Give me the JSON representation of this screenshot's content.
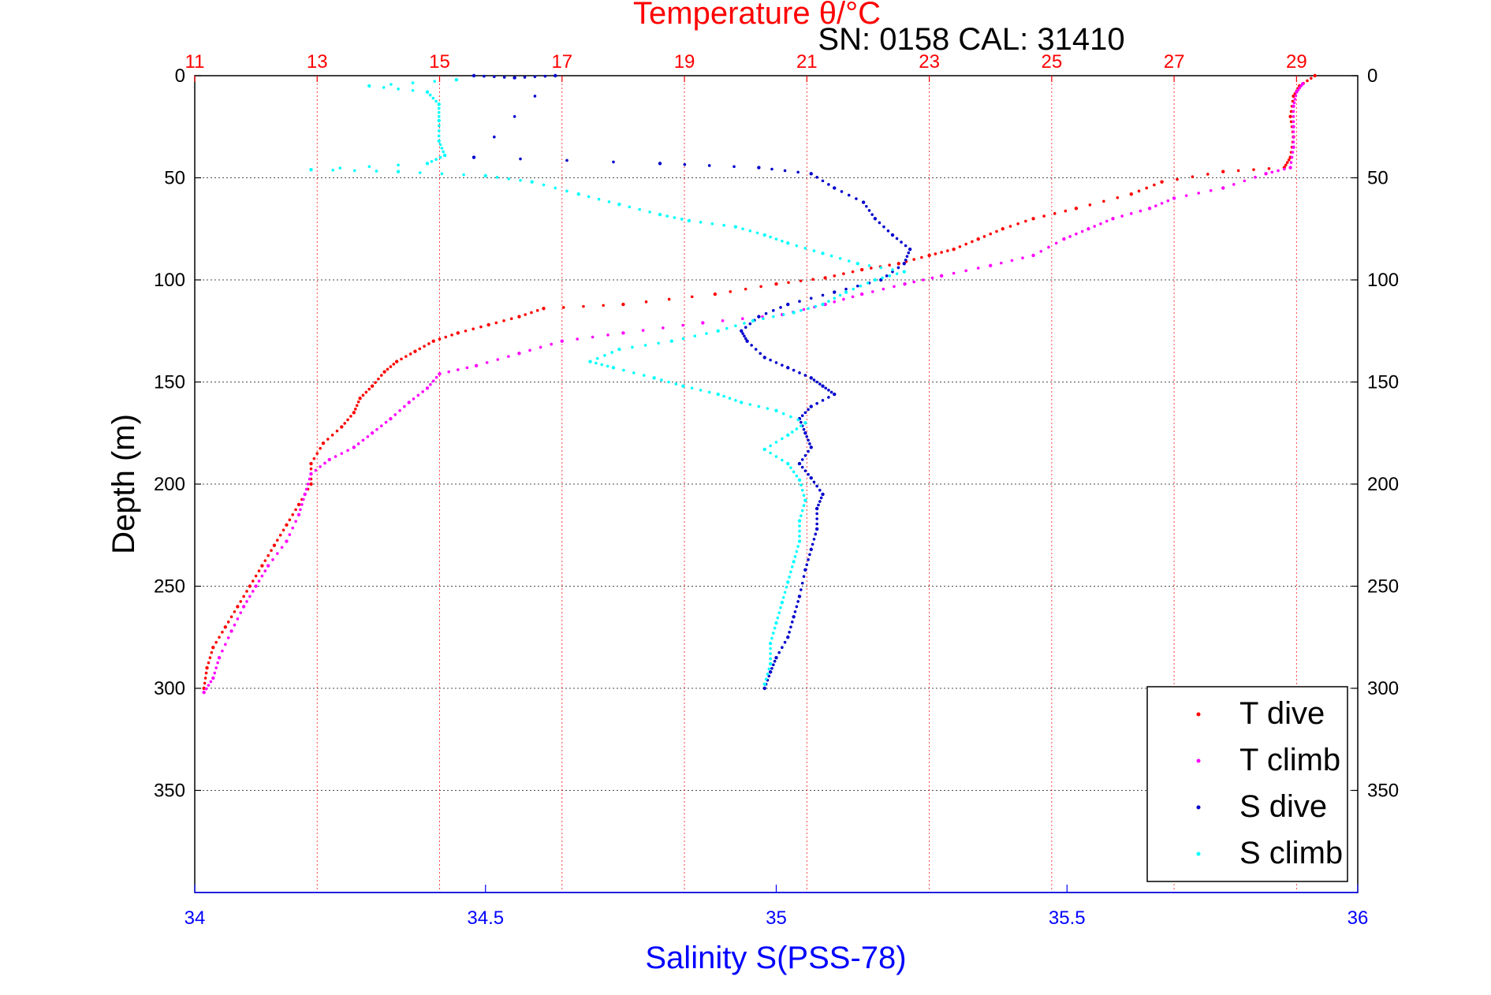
{
  "chart_data": {
    "type": "scatter",
    "title": "Temperature θ/°C",
    "subtitle": "SN: 0158  CAL: 31410",
    "ylabel": "Depth (m)",
    "xlabel_bottom": "Salinity S(PSS-78)",
    "xlabel_top": "Temperature θ/°C",
    "ylim": [
      0,
      400
    ],
    "y_reversed": true,
    "yticks": [
      0,
      50,
      100,
      150,
      200,
      250,
      300,
      350
    ],
    "x_top_lim": [
      11,
      30
    ],
    "x_top_ticks": [
      11,
      13,
      15,
      17,
      19,
      21,
      23,
      25,
      27,
      29
    ],
    "x_bottom_lim": [
      34,
      36
    ],
    "x_bottom_ticks": [
      34,
      34.5,
      35,
      35.5,
      36
    ],
    "grid": true,
    "legend_position": "bottom-right",
    "legend": [
      "T dive",
      "T climb",
      "S dive",
      "S climb"
    ],
    "colors": {
      "T dive": "#ff0000",
      "T climb": "#ff00ff",
      "S dive": "#0000cc",
      "S climb": "#00ffff",
      "grid_temperature": "#ff0000",
      "grid_depth": "#000000"
    },
    "series": [
      {
        "name": "T dive",
        "axis": "temperature",
        "points": [
          [
            29.3,
            0
          ],
          [
            29.05,
            5
          ],
          [
            28.95,
            10
          ],
          [
            28.9,
            20
          ],
          [
            28.95,
            30
          ],
          [
            28.9,
            40
          ],
          [
            28.8,
            45
          ],
          [
            27.8,
            47
          ],
          [
            26.8,
            52
          ],
          [
            26.3,
            58
          ],
          [
            25.4,
            65
          ],
          [
            24.7,
            70
          ],
          [
            24.2,
            75
          ],
          [
            23.8,
            80
          ],
          [
            23.4,
            85
          ],
          [
            23.0,
            88
          ],
          [
            22.5,
            92
          ],
          [
            21.9,
            95
          ],
          [
            21.3,
            99
          ],
          [
            20.5,
            102
          ],
          [
            19.5,
            107
          ],
          [
            18.0,
            112
          ],
          [
            16.7,
            114
          ],
          [
            16.3,
            118
          ],
          [
            15.8,
            122
          ],
          [
            15.3,
            126
          ],
          [
            14.9,
            130
          ],
          [
            14.6,
            135
          ],
          [
            14.3,
            140
          ],
          [
            14.1,
            145
          ],
          [
            13.9,
            152
          ],
          [
            13.7,
            158
          ],
          [
            13.6,
            165
          ],
          [
            13.4,
            172
          ],
          [
            13.1,
            180
          ],
          [
            12.9,
            190
          ],
          [
            12.9,
            200
          ],
          [
            12.7,
            210
          ],
          [
            12.5,
            220
          ],
          [
            12.3,
            230
          ],
          [
            12.1,
            240
          ],
          [
            11.9,
            250
          ],
          [
            11.7,
            260
          ],
          [
            11.5,
            270
          ],
          [
            11.3,
            280
          ],
          [
            11.2,
            290
          ],
          [
            11.15,
            300
          ]
        ]
      },
      {
        "name": "T climb",
        "axis": "temperature",
        "points": [
          [
            11.15,
            302
          ],
          [
            11.3,
            295
          ],
          [
            11.4,
            285
          ],
          [
            11.6,
            272
          ],
          [
            11.8,
            260
          ],
          [
            12.0,
            250
          ],
          [
            12.2,
            240
          ],
          [
            12.5,
            228
          ],
          [
            12.7,
            215
          ],
          [
            12.8,
            205
          ],
          [
            12.9,
            195
          ],
          [
            13.2,
            188
          ],
          [
            13.6,
            182
          ],
          [
            13.9,
            175
          ],
          [
            14.2,
            168
          ],
          [
            14.5,
            160
          ],
          [
            14.8,
            153
          ],
          [
            15.0,
            146
          ],
          [
            15.6,
            142
          ],
          [
            16.3,
            136
          ],
          [
            17.0,
            130
          ],
          [
            18.0,
            126
          ],
          [
            19.3,
            121
          ],
          [
            20.6,
            117
          ],
          [
            21.3,
            112
          ],
          [
            21.9,
            107
          ],
          [
            22.6,
            102
          ],
          [
            23.2,
            98
          ],
          [
            24.0,
            93
          ],
          [
            24.7,
            88
          ],
          [
            25.2,
            80
          ],
          [
            25.6,
            75
          ],
          [
            26.0,
            70
          ],
          [
            26.6,
            65
          ],
          [
            27.0,
            60
          ],
          [
            27.8,
            55
          ],
          [
            28.5,
            48
          ],
          [
            28.9,
            45
          ],
          [
            28.95,
            35
          ],
          [
            28.95,
            25
          ],
          [
            28.95,
            15
          ],
          [
            29.0,
            8
          ],
          [
            29.1,
            4
          ]
        ]
      },
      {
        "name": "S dive",
        "axis": "salinity",
        "points": [
          [
            34.48,
            0
          ],
          [
            34.55,
            1
          ],
          [
            34.62,
            0
          ],
          [
            34.48,
            40
          ],
          [
            34.8,
            43
          ],
          [
            34.97,
            45
          ],
          [
            35.06,
            48
          ],
          [
            35.1,
            55
          ],
          [
            35.15,
            62
          ],
          [
            35.17,
            70
          ],
          [
            35.2,
            78
          ],
          [
            35.23,
            85
          ],
          [
            35.22,
            92
          ],
          [
            35.18,
            100
          ],
          [
            35.1,
            106
          ],
          [
            35.02,
            112
          ],
          [
            34.97,
            118
          ],
          [
            34.94,
            125
          ],
          [
            34.95,
            130
          ],
          [
            34.98,
            138
          ],
          [
            35.02,
            143
          ],
          [
            35.06,
            148
          ],
          [
            35.08,
            152
          ],
          [
            35.1,
            156
          ],
          [
            35.06,
            162
          ],
          [
            35.04,
            168
          ],
          [
            35.05,
            175
          ],
          [
            35.06,
            182
          ],
          [
            35.04,
            190
          ],
          [
            35.06,
            197
          ],
          [
            35.08,
            205
          ],
          [
            35.07,
            212
          ],
          [
            35.07,
            222
          ],
          [
            35.06,
            232
          ],
          [
            35.05,
            242
          ],
          [
            35.04,
            255
          ],
          [
            35.03,
            265
          ],
          [
            35.02,
            275
          ],
          [
            35.0,
            285
          ],
          [
            34.99,
            292
          ],
          [
            34.98,
            300
          ]
        ]
      },
      {
        "name": "S climb",
        "axis": "salinity",
        "points": [
          [
            34.98,
            298
          ],
          [
            34.99,
            288
          ],
          [
            34.99,
            278
          ],
          [
            35.0,
            268
          ],
          [
            35.01,
            258
          ],
          [
            35.02,
            248
          ],
          [
            35.03,
            238
          ],
          [
            35.04,
            228
          ],
          [
            35.04,
            218
          ],
          [
            35.05,
            208
          ],
          [
            35.04,
            198
          ],
          [
            35.02,
            190
          ],
          [
            34.98,
            183
          ],
          [
            35.02,
            176
          ],
          [
            35.05,
            170
          ],
          [
            35.0,
            164
          ],
          [
            34.94,
            160
          ],
          [
            34.9,
            156
          ],
          [
            34.84,
            152
          ],
          [
            34.79,
            148
          ],
          [
            34.72,
            143
          ],
          [
            34.68,
            140
          ],
          [
            34.73,
            134
          ],
          [
            34.82,
            130
          ],
          [
            34.9,
            125
          ],
          [
            34.96,
            120
          ],
          [
            35.03,
            116
          ],
          [
            35.08,
            112
          ],
          [
            35.12,
            106
          ],
          [
            35.17,
            100
          ],
          [
            35.22,
            96
          ],
          [
            35.14,
            92
          ],
          [
            35.08,
            87
          ],
          [
            35.02,
            82
          ],
          [
            34.98,
            78
          ],
          [
            34.93,
            74
          ],
          [
            34.85,
            71
          ],
          [
            34.8,
            68
          ],
          [
            34.73,
            63
          ],
          [
            34.66,
            58
          ],
          [
            34.58,
            52
          ],
          [
            34.5,
            49
          ],
          [
            34.35,
            47
          ],
          [
            34.2,
            46
          ],
          [
            34.4,
            43
          ],
          [
            34.43,
            39
          ],
          [
            34.42,
            32
          ],
          [
            34.42,
            22
          ],
          [
            34.42,
            14
          ],
          [
            34.4,
            8
          ],
          [
            34.3,
            5
          ],
          [
            34.45,
            2
          ]
        ]
      }
    ]
  }
}
